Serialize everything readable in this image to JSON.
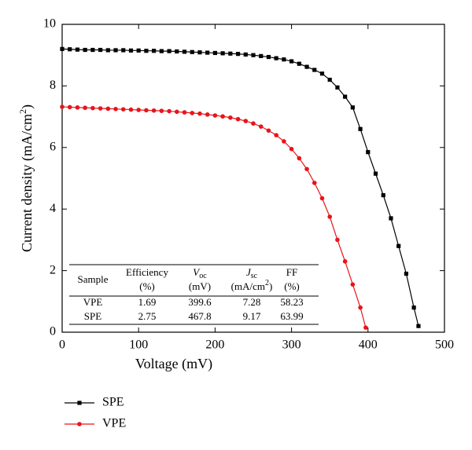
{
  "chart_data": {
    "type": "line",
    "xlabel": "Voltage (mV)",
    "ylabel": {
      "text": "Current density (mA/cm",
      "sup": "2",
      "end": ")"
    },
    "xlim": [
      0,
      500
    ],
    "xticks": [
      0,
      100,
      200,
      300,
      400,
      500
    ],
    "ylim": [
      0,
      10
    ],
    "yticks": [
      0,
      2,
      4,
      6,
      8,
      10
    ],
    "legend": "bottom-left",
    "series": [
      {
        "name": "SPE",
        "color": "#000000",
        "marker": "square",
        "x": [
          0,
          10,
          20,
          30,
          40,
          50,
          60,
          70,
          80,
          90,
          100,
          110,
          120,
          130,
          140,
          150,
          160,
          170,
          180,
          190,
          200,
          210,
          220,
          230,
          240,
          250,
          260,
          270,
          280,
          290,
          300,
          310,
          320,
          330,
          340,
          350,
          360,
          370,
          380,
          390,
          400,
          410,
          420,
          430,
          440,
          450,
          460,
          466
        ],
        "values": [
          9.2,
          9.19,
          9.18,
          9.17,
          9.17,
          9.17,
          9.16,
          9.16,
          9.16,
          9.15,
          9.15,
          9.14,
          9.14,
          9.13,
          9.13,
          9.12,
          9.11,
          9.1,
          9.09,
          9.08,
          9.07,
          9.06,
          9.05,
          9.04,
          9.02,
          9.0,
          8.97,
          8.94,
          8.9,
          8.86,
          8.8,
          8.72,
          8.62,
          8.52,
          8.4,
          8.2,
          7.95,
          7.65,
          7.3,
          6.6,
          5.85,
          5.15,
          4.45,
          3.7,
          2.8,
          1.9,
          0.8,
          0.2
        ]
      },
      {
        "name": "VPE",
        "color": "#e8141b",
        "marker": "circle",
        "x": [
          0,
          10,
          20,
          30,
          40,
          50,
          60,
          70,
          80,
          90,
          100,
          110,
          120,
          130,
          140,
          150,
          160,
          170,
          180,
          190,
          200,
          210,
          220,
          230,
          240,
          250,
          260,
          270,
          280,
          290,
          300,
          310,
          320,
          330,
          340,
          350,
          360,
          370,
          380,
          390,
          397
        ],
        "values": [
          7.32,
          7.31,
          7.3,
          7.29,
          7.28,
          7.27,
          7.26,
          7.25,
          7.24,
          7.23,
          7.22,
          7.21,
          7.2,
          7.19,
          7.18,
          7.16,
          7.14,
          7.12,
          7.1,
          7.07,
          7.04,
          7.01,
          6.97,
          6.92,
          6.86,
          6.78,
          6.68,
          6.55,
          6.4,
          6.2,
          5.95,
          5.65,
          5.3,
          4.85,
          4.35,
          3.75,
          3.0,
          2.3,
          1.55,
          0.8,
          0.15
        ]
      }
    ],
    "table": {
      "header": [
        {
          "line1": "Sample"
        },
        {
          "line1": "Efficiency",
          "line2": "(%)"
        },
        {
          "sym": "V",
          "sub": "oc",
          "line2": "(mV)"
        },
        {
          "sym": "J",
          "sub": "sc",
          "line2": "(mA/cm",
          "sup": "2",
          "end": ")"
        },
        {
          "line1": "FF",
          "line2": "(%)"
        }
      ],
      "rows": [
        [
          "VPE",
          "1.69",
          "399.6",
          "7.28",
          "58.23"
        ],
        [
          "SPE",
          "2.75",
          "467.8",
          "9.17",
          "63.99"
        ]
      ]
    }
  }
}
